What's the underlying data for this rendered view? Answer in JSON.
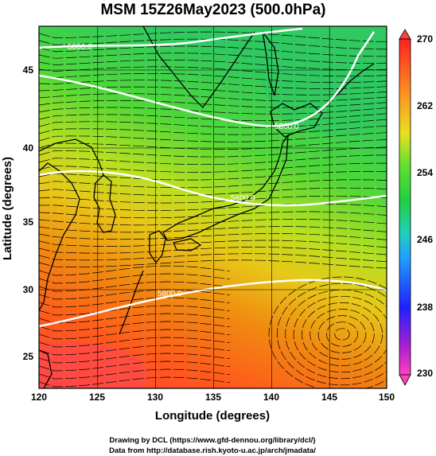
{
  "title": "MSM 15Z26May2023 (500.0hPa)",
  "xlabel": "Longitude (degrees)",
  "ylabel": "Latitude  (degrees)",
  "x_ticks": [
    "120",
    "125",
    "130",
    "135",
    "140",
    "145",
    "150"
  ],
  "y_ticks": [
    "25",
    "30",
    "35",
    "40",
    "45"
  ],
  "colorbar_ticks": [
    "230",
    "238",
    "246",
    "254",
    "262",
    "270"
  ],
  "colorbar_range": [
    230,
    270
  ],
  "contour_label": "5800.0",
  "credit_line1": "Drawing by DCL (https://www.gfd-dennou.org/library/dcl/)",
  "credit_line2": "Data from http://database.rish.kyoto-u.ac.jp/arch/jmadata/",
  "colors": {
    "cold": "#ff40c0",
    "cool": "#3030ff",
    "mid": "#20c0c0",
    "green": "#30d040",
    "yellow": "#e8e020",
    "warm": "#ff4020",
    "contour": "#ffffff",
    "coast": "#000000"
  },
  "map_extent": {
    "lon": [
      120,
      150
    ],
    "lat": [
      22.5,
      48
    ]
  }
}
